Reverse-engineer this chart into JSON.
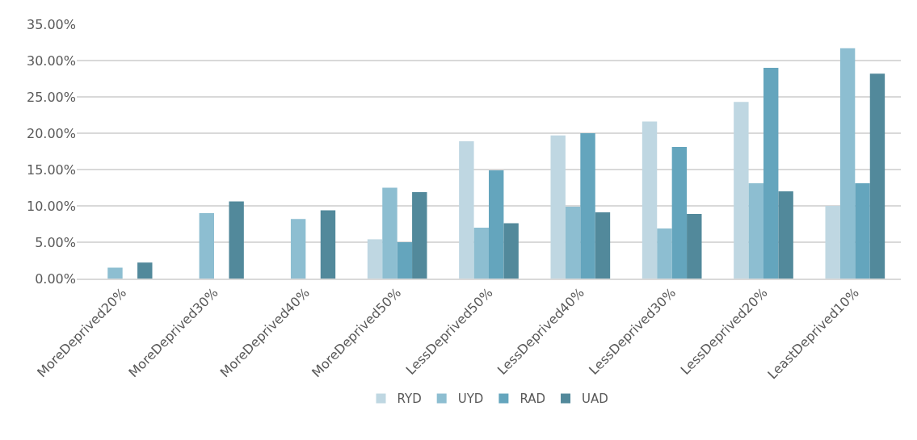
{
  "chart_data": {
    "type": "bar",
    "categories": [
      "MoreDeprived20%",
      "MoreDeprived30%",
      "MoreDeprived40%",
      "MoreDeprived50%",
      "LessDeprived50%",
      "LessDeprived40%",
      "LessDeprived30%",
      "LessDeprived20%",
      "LeastDeprived10%"
    ],
    "series": [
      {
        "name": "RYD",
        "color": "#bfd7e2",
        "values": [
          0,
          0,
          0,
          5.4,
          18.9,
          19.7,
          21.6,
          24.3,
          10.0
        ]
      },
      {
        "name": "UYD",
        "color": "#8dbed1",
        "values": [
          1.5,
          9.0,
          8.2,
          12.5,
          7.0,
          9.9,
          6.9,
          13.1,
          31.7
        ]
      },
      {
        "name": "RAD",
        "color": "#64a5bd",
        "values": [
          0,
          0,
          0,
          5.0,
          14.9,
          20.0,
          18.1,
          29.0,
          13.1
        ]
      },
      {
        "name": "UAD",
        "color": "#52899b",
        "values": [
          2.2,
          10.6,
          9.4,
          11.9,
          7.6,
          9.1,
          8.9,
          12.0,
          28.2
        ]
      }
    ],
    "ylim": [
      0,
      35
    ],
    "yticks": [
      {
        "value": 0,
        "label": "0.00%"
      },
      {
        "value": 5,
        "label": "5.00%"
      },
      {
        "value": 10,
        "label": "10.00%"
      },
      {
        "value": 15,
        "label": "15.00%"
      },
      {
        "value": 20,
        "label": "20.00%"
      },
      {
        "value": 25,
        "label": "25.00%"
      },
      {
        "value": 30,
        "label": "30.00%"
      },
      {
        "value": 35,
        "label": "35.00%"
      }
    ],
    "grid": "y",
    "legend": "bottom"
  }
}
